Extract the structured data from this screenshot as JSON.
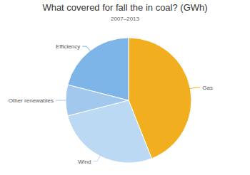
{
  "chart_data": {
    "type": "pie",
    "title": "What covered for fall the in coal? (GWh)",
    "subtitle": "2007–2013",
    "categories": [
      "Gas",
      "Wind",
      "Other renewables",
      "Efficiency"
    ],
    "values": [
      44,
      27,
      8,
      21
    ],
    "colors": [
      "#f1ae1f",
      "#bcd9f3",
      "#a2c8ee",
      "#7db5e9"
    ]
  }
}
